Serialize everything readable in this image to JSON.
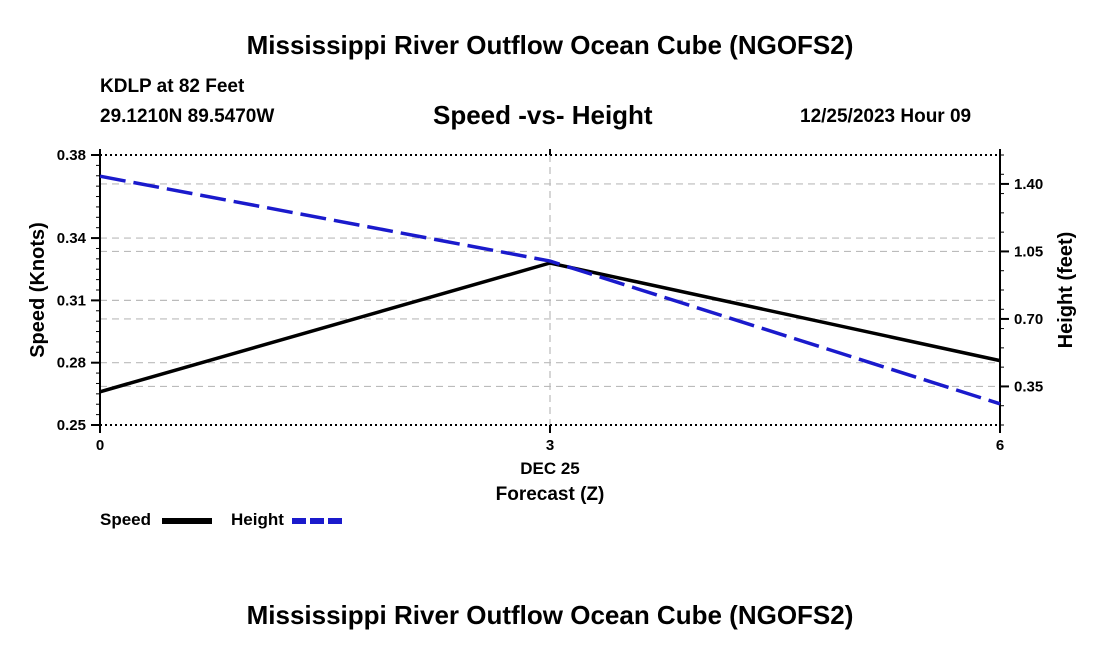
{
  "page": {
    "title": "Mississippi River Outflow Ocean Cube (NGOFS2)",
    "station": "KDLP at 82 Feet",
    "coords": "29.1210N  89.5470W",
    "subtitle": "Speed -vs- Height",
    "datetime": "12/25/2023 Hour 09",
    "footer_title": "Mississippi River Outflow Ocean Cube (NGOFS2)"
  },
  "legend": {
    "speed_label": "Speed",
    "height_label": "Height"
  },
  "colors": {
    "speed": "#000000",
    "height": "#1a1acc",
    "grid": "#bbbbbb"
  },
  "chart_data": {
    "type": "line",
    "title": "Speed -vs- Height",
    "xlabel": "Forecast (Z)",
    "xlabel_date": "DEC 25",
    "ylabel": "Speed (Knots)",
    "y2label": "Height (feet)",
    "x": [
      0,
      3,
      6
    ],
    "x_ticks": [
      "0",
      "3",
      "6"
    ],
    "xlim": [
      0,
      6
    ],
    "ylim": [
      0.25,
      0.38
    ],
    "y_ticks": [
      "0.25",
      "0.28",
      "0.31",
      "0.34",
      "0.38"
    ],
    "y_tick_values": [
      0.25,
      0.28,
      0.31,
      0.34,
      0.38
    ],
    "y2lim": [
      0.15,
      1.55
    ],
    "y2_ticks": [
      "0.35",
      "0.70",
      "1.05",
      "1.40"
    ],
    "y2_tick_values": [
      0.35,
      0.7,
      1.05,
      1.4
    ],
    "grid": true,
    "series": [
      {
        "name": "Speed",
        "axis": "left",
        "style": "solid",
        "values": [
          0.266,
          0.328,
          0.281
        ]
      },
      {
        "name": "Height",
        "axis": "right",
        "style": "dashed",
        "values": [
          1.44,
          1.0,
          0.26
        ]
      }
    ]
  }
}
